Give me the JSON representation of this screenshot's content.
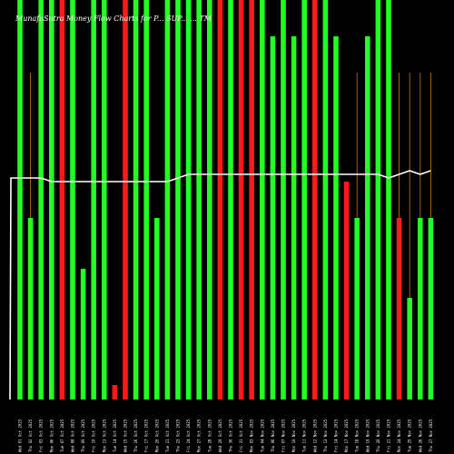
{
  "chart_data": {
    "type": "bar",
    "title": "MunafaSutra Money Flow Charts for P... SUP... ... TM",
    "ylim": [
      0,
      110
    ],
    "categories": [
      "Wed 01 Oct 2025",
      "Thu 02 Oct 2025",
      "Fri 03 Oct 2025",
      "Mon 06 Oct 2025",
      "Tue 07 Oct 2025",
      "Wed 08 Oct 2025",
      "Thu 09 Oct 2025",
      "Fri 10 Oct 2025",
      "Mon 13 Oct 2025",
      "Tue 14 Oct 2025",
      "Wed 15 Oct 2025",
      "Thu 16 Oct 2025",
      "Fri 17 Oct 2025",
      "Mon 20 Oct 2025",
      "Tue 21 Oct 2025",
      "Thu 23 Oct 2025",
      "Fri 24 Oct 2025",
      "Mon 27 Oct 2025",
      "Tue 28 Oct 2025",
      "Wed 29 Oct 2025",
      "Thu 30 Oct 2025",
      "Fri 31 Oct 2025",
      "Mon 03 Nov 2025",
      "Tue 04 Nov 2025",
      "Thu 06 Nov 2025",
      "Fri 07 Nov 2025",
      "Mon 10 Nov 2025",
      "Tue 11 Nov 2025",
      "Wed 12 Nov 2025",
      "Thu 13 Nov 2025",
      "Fri 14 Nov 2025",
      "Mon 17 Nov 2025",
      "Tue 18 Nov 2025",
      "Wed 19 Nov 2025",
      "Thu 20 Nov 2025",
      "Fri 21 Nov 2025",
      "Mon 24 Nov 2025",
      "Tue 25 Nov 2025",
      "Wed 26 Nov 2025",
      "Thu 27 Nov 2025"
    ],
    "series": [
      {
        "values": [
          110,
          50,
          110,
          110,
          110,
          110,
          36,
          110,
          110,
          4,
          110,
          110,
          110,
          50,
          110,
          110,
          110,
          110,
          110,
          110,
          110,
          110,
          110,
          110,
          100,
          110,
          100,
          110,
          110,
          110,
          100,
          60,
          50,
          100,
          110,
          110,
          50,
          28,
          50,
          50
        ],
        "colors": [
          "g",
          "g",
          "g",
          "g",
          "r",
          "g",
          "g",
          "g",
          "g",
          "r",
          "r",
          "g",
          "g",
          "g",
          "g",
          "g",
          "g",
          "g",
          "g",
          "r",
          "g",
          "r",
          "r",
          "g",
          "g",
          "g",
          "g",
          "g",
          "r",
          "g",
          "g",
          "r",
          "g",
          "g",
          "g",
          "g",
          "r",
          "g",
          "g",
          "g"
        ]
      },
      {
        "values": [
          61,
          61,
          61,
          60,
          60,
          60,
          60,
          60,
          60,
          60,
          60,
          60,
          60,
          60,
          60,
          61,
          62,
          62,
          62,
          62,
          62,
          62,
          62,
          62,
          62,
          62,
          62,
          62,
          62,
          62,
          62,
          62,
          62,
          62,
          62,
          61,
          62,
          63,
          62,
          63
        ]
      }
    ],
    "background_lines": [
      false,
      true,
      false,
      false,
      false,
      false,
      false,
      false,
      false,
      false,
      false,
      false,
      false,
      false,
      false,
      false,
      false,
      false,
      false,
      false,
      false,
      false,
      false,
      false,
      false,
      false,
      false,
      false,
      false,
      false,
      false,
      false,
      true,
      true,
      true,
      true,
      true,
      true,
      true,
      true
    ],
    "colors": {
      "up": "#22ff22",
      "down": "#ff1a1a",
      "line": "#ffffff",
      "background": "#000000",
      "orange": "#c47a1e"
    },
    "grid": false
  }
}
